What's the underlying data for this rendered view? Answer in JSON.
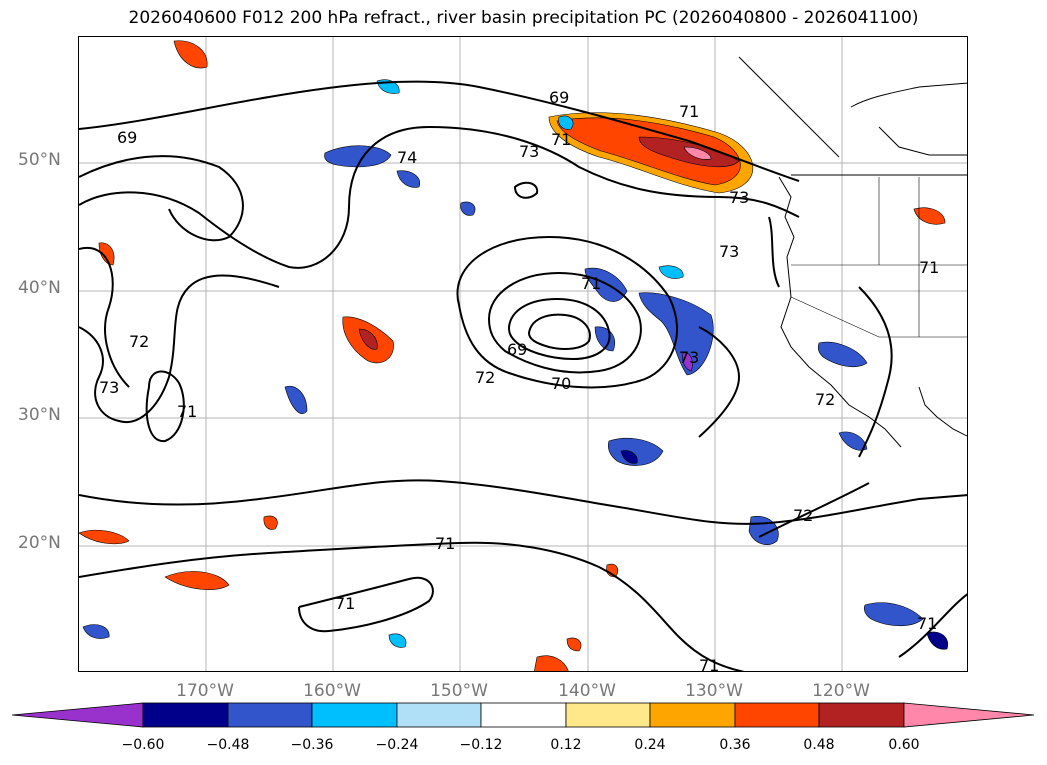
{
  "title": "2026040600 F012 200 hPa refract., river basin precipitation PC (2026040800 - 2026041100)",
  "lat_labels": [
    "50°N",
    "40°N",
    "30°N",
    "20°N"
  ],
  "lon_labels": [
    "170°W",
    "160°W",
    "150°W",
    "140°W",
    "130°W",
    "120°W"
  ],
  "contour_labels": [
    "69",
    "74",
    "73",
    "69",
    "71",
    "73",
    "71",
    "72",
    "73",
    "71",
    "69",
    "72",
    "70",
    "71",
    "73",
    "72",
    "71",
    "72",
    "71",
    "71",
    "71",
    "71",
    "73"
  ],
  "colorbar": {
    "ticks": [
      "−0.60",
      "−0.48",
      "−0.36",
      "−0.24",
      "−0.12",
      "0.12",
      "0.24",
      "0.36",
      "0.48",
      "0.60"
    ],
    "colors": [
      "#9932cc",
      "#00008b",
      "#3355cc",
      "#00bfff",
      "#b0e0f8",
      "#ffffff",
      "#ffe88a",
      "#ffa500",
      "#ff4500",
      "#b22222",
      "#ff88aa"
    ]
  },
  "colors": {
    "grid": "#b4b4b4",
    "contour": "#000000",
    "axis_text": "#777777"
  }
}
